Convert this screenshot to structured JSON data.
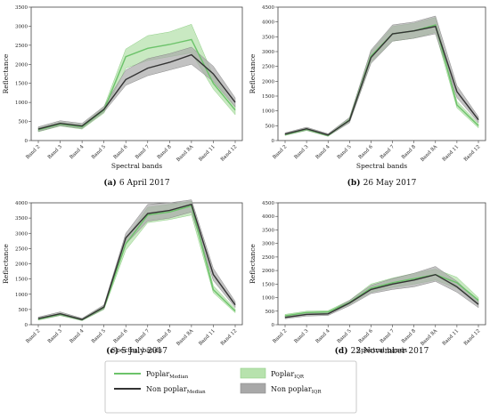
{
  "figure": {
    "legend": {
      "entries": [
        {
          "key": "poplar_median",
          "text": "Poplar",
          "sub": "Median",
          "kind": "line",
          "color": "#6cc36a"
        },
        {
          "key": "poplar_iqr",
          "text": "Poplar",
          "sub": "IQR",
          "kind": "band",
          "color": "#b7e2ad"
        },
        {
          "key": "nonpoplar_median",
          "text": "Non poplar",
          "sub": "Median",
          "kind": "line",
          "color": "#333333"
        },
        {
          "key": "nonpoplar_iqr",
          "text": "Non poplar",
          "sub": "IQR",
          "kind": "band",
          "color": "#a8a8a8"
        }
      ]
    }
  },
  "chart_data": [
    {
      "type": "line",
      "panel_label": "(a)",
      "caption": "6 April 2017",
      "xlabel": "Spectral bands",
      "ylabel": "Reflectance",
      "ylim": [
        0,
        3500
      ],
      "yticks": [
        0,
        500,
        1000,
        1500,
        2000,
        2500,
        3000,
        3500
      ],
      "categories": [
        "Band 2",
        "Band 3",
        "Band 4",
        "Band 5",
        "Band 6",
        "Band 7",
        "Band 8",
        "Band 8A",
        "Band 11",
        "Band 12"
      ],
      "series": [
        {
          "name": "Poplar Median",
          "values": [
            280,
            430,
            360,
            800,
            2200,
            2420,
            2520,
            2650,
            1500,
            800
          ],
          "iqr_low": [
            230,
            380,
            300,
            720,
            1900,
            2100,
            2200,
            2300,
            1350,
            680
          ],
          "iqr_high": [
            330,
            480,
            410,
            880,
            2400,
            2750,
            2850,
            3050,
            1700,
            900
          ]
        },
        {
          "name": "Non poplar Median",
          "values": [
            300,
            450,
            380,
            820,
            1600,
            1900,
            2050,
            2250,
            1750,
            1000
          ],
          "iqr_low": [
            240,
            390,
            320,
            750,
            1450,
            1700,
            1850,
            2000,
            1550,
            880
          ],
          "iqr_high": [
            360,
            520,
            450,
            900,
            1850,
            2150,
            2280,
            2450,
            1950,
            1120
          ]
        }
      ]
    },
    {
      "type": "line",
      "panel_label": "(b)",
      "caption": "26 May 2017",
      "xlabel": "Spectral bands",
      "ylabel": "Reflectance",
      "ylim": [
        0,
        4500
      ],
      "yticks": [
        0,
        500,
        1000,
        1500,
        2000,
        2500,
        3000,
        3500,
        4000,
        4500
      ],
      "categories": [
        "Band 2",
        "Band 3",
        "Band 4",
        "Band 5",
        "Band 6",
        "Band 7",
        "Band 8",
        "Band 8A",
        "Band 11",
        "Band 12"
      ],
      "series": [
        {
          "name": "Poplar Median",
          "values": [
            200,
            380,
            170,
            700,
            2850,
            3600,
            3700,
            3900,
            1200,
            500
          ],
          "iqr_low": [
            170,
            340,
            140,
            630,
            2650,
            3350,
            3450,
            3650,
            1100,
            430
          ],
          "iqr_high": [
            230,
            420,
            200,
            760,
            3000,
            3850,
            3950,
            4150,
            1320,
            570
          ]
        },
        {
          "name": "Non poplar Median",
          "values": [
            220,
            400,
            190,
            680,
            2800,
            3600,
            3700,
            3850,
            1650,
            700
          ],
          "iqr_low": [
            180,
            350,
            150,
            600,
            2600,
            3350,
            3450,
            3600,
            1450,
            600
          ],
          "iqr_high": [
            260,
            450,
            230,
            780,
            3050,
            3900,
            4000,
            4200,
            1850,
            800
          ]
        }
      ]
    },
    {
      "type": "line",
      "panel_label": "(c)",
      "caption": "5 July 2017",
      "xlabel": "Spectral bands",
      "ylabel": "Reflectance",
      "ylim": [
        0,
        4000
      ],
      "yticks": [
        0,
        500,
        1000,
        1500,
        2000,
        2500,
        3000,
        3500,
        4000
      ],
      "categories": [
        "Band 2",
        "Band 3",
        "Band 4",
        "Band 5",
        "Band 6",
        "Band 7",
        "Band 8",
        "Band 8A",
        "Band 11",
        "Band 12"
      ],
      "series": [
        {
          "name": "Poplar Median",
          "values": [
            180,
            340,
            160,
            560,
            2650,
            3600,
            3700,
            3900,
            1150,
            450
          ],
          "iqr_low": [
            150,
            300,
            130,
            500,
            2450,
            3350,
            3450,
            3600,
            1050,
            390
          ],
          "iqr_high": [
            210,
            380,
            190,
            620,
            2800,
            3850,
            3950,
            4050,
            1280,
            520
          ]
        },
        {
          "name": "Non poplar Median",
          "values": [
            200,
            360,
            170,
            580,
            2850,
            3650,
            3750,
            3950,
            1650,
            650
          ],
          "iqr_low": [
            160,
            310,
            140,
            520,
            2650,
            3400,
            3500,
            3700,
            1450,
            560
          ],
          "iqr_high": [
            250,
            420,
            210,
            650,
            3000,
            3950,
            4000,
            4100,
            1850,
            760
          ]
        }
      ]
    },
    {
      "type": "line",
      "panel_label": "(d)",
      "caption": "22 November 2017",
      "xlabel": "Spectral bands",
      "ylabel": "Reflectance",
      "ylim": [
        0,
        4500
      ],
      "yticks": [
        0,
        500,
        1000,
        1500,
        2000,
        2500,
        3000,
        3500,
        4000,
        4500
      ],
      "categories": [
        "Band 2",
        "Band 3",
        "Band 4",
        "Band 5",
        "Band 6",
        "Band 7",
        "Band 8",
        "Band 8A",
        "Band 11",
        "Band 12"
      ],
      "series": [
        {
          "name": "Poplar Median",
          "values": [
            330,
            450,
            470,
            820,
            1350,
            1550,
            1700,
            1850,
            1550,
            900
          ],
          "iqr_low": [
            280,
            400,
            420,
            740,
            1200,
            1380,
            1500,
            1650,
            1350,
            780
          ],
          "iqr_high": [
            380,
            500,
            520,
            900,
            1500,
            1720,
            1900,
            2050,
            1750,
            1000
          ]
        },
        {
          "name": "Non poplar Median",
          "values": [
            270,
            380,
            400,
            800,
            1300,
            1500,
            1650,
            1850,
            1400,
            750
          ],
          "iqr_low": [
            220,
            320,
            340,
            700,
            1150,
            1300,
            1400,
            1600,
            1200,
            630
          ],
          "iqr_high": [
            320,
            440,
            460,
            900,
            1450,
            1700,
            1900,
            2150,
            1600,
            870
          ]
        }
      ]
    }
  ]
}
